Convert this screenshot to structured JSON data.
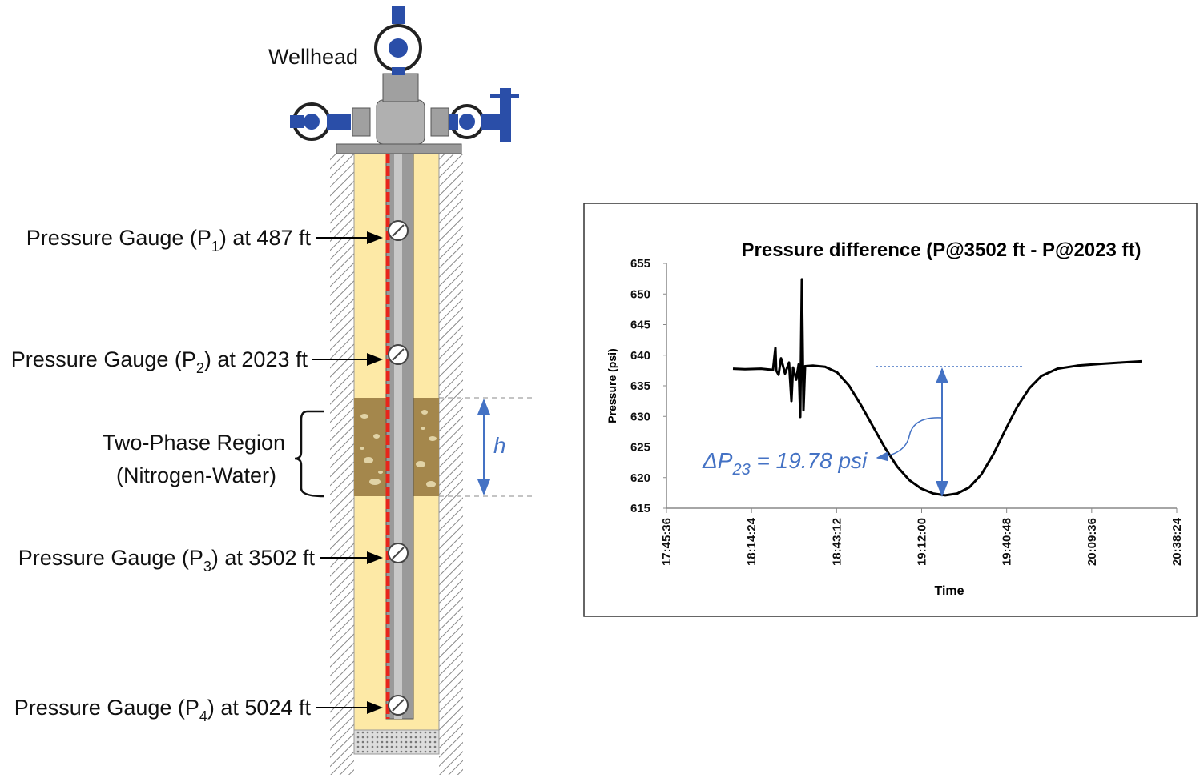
{
  "diagram": {
    "wellhead": "Wellhead",
    "gauges": [
      {
        "prefix": "Pressure Gauge (P",
        "sub": "1",
        "suffix": ") at 487 ft"
      },
      {
        "prefix": "Pressure Gauge (P",
        "sub": "2",
        "suffix": ") at 2023 ft"
      },
      {
        "prefix": "Pressure Gauge (P",
        "sub": "3",
        "suffix": ") at 3502 ft"
      },
      {
        "prefix": "Pressure Gauge (P",
        "sub": "4",
        "suffix": ") at 5024 ft"
      }
    ],
    "region": {
      "line1": "Two-Phase Region",
      "line2": "(Nitrogen-Water)"
    },
    "height_label": "h"
  },
  "chart_data": {
    "type": "line",
    "title": "Pressure difference (P@3502 ft - P@2023 ft)",
    "x_label": "Time",
    "y_label": "Pressure (psi)",
    "xlim": [
      63936,
      74304
    ],
    "xticks": [
      {
        "value": 63936,
        "label": "17:45:36"
      },
      {
        "value": 65664,
        "label": "18:14:24"
      },
      {
        "value": 67392,
        "label": "18:43:12"
      },
      {
        "value": 69120,
        "label": "19:12:00"
      },
      {
        "value": 70848,
        "label": "19:40:48"
      },
      {
        "value": 72576,
        "label": "20:09:36"
      },
      {
        "value": 74304,
        "label": "20:38:24"
      }
    ],
    "ylim": [
      615,
      655
    ],
    "yticks": [
      615,
      620,
      625,
      630,
      635,
      640,
      645,
      650,
      655
    ],
    "x": [
      65287,
      65531,
      65857,
      66101,
      66150,
      66166,
      66215,
      66263,
      66345,
      66426,
      66475,
      66508,
      66573,
      66622,
      66654,
      66687,
      66719,
      66752,
      66915,
      67159,
      67403,
      67647,
      67891,
      68135,
      68379,
      68623,
      68868,
      69112,
      69356,
      69600,
      69844,
      70088,
      70332,
      70577,
      70821,
      71065,
      71309,
      71553,
      71879,
      72286,
      72774,
      73181,
      73588
    ],
    "series": [
      {
        "color": "#000000",
        "values": [
          637.8,
          637.7,
          637.8,
          637.6,
          641.2,
          637.5,
          636.8,
          639.5,
          637,
          638.8,
          632.5,
          638,
          636,
          638.5,
          629.9,
          652.4,
          631,
          638.2,
          638.3,
          638.1,
          637.2,
          635.0,
          631.8,
          628.3,
          624.8,
          621.8,
          619.6,
          618.2,
          617.4,
          617.1,
          617.4,
          618.4,
          620.5,
          623.8,
          627.8,
          631.6,
          634.6,
          636.6,
          637.8,
          638.3,
          638.6,
          638.8,
          639.0
        ]
      }
    ],
    "annotation": {
      "prefix": "ΔP",
      "sub": "23",
      "suffix": " = 19.78 psi"
    }
  }
}
